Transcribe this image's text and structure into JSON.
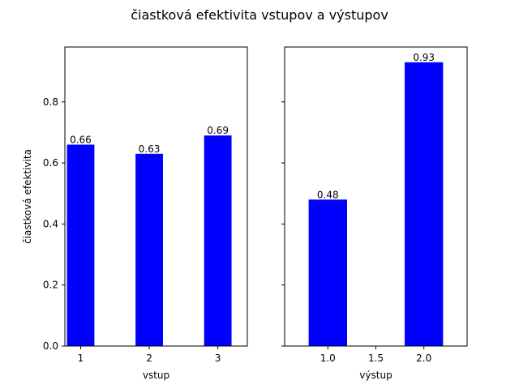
{
  "figure": {
    "title": "čiastková efektivita vstupov a výstupov"
  },
  "chart_data": [
    {
      "type": "bar",
      "x": [
        1,
        2,
        3
      ],
      "values": [
        0.66,
        0.63,
        0.69
      ],
      "bar_labels": [
        "0.66",
        "0.63",
        "0.69"
      ],
      "xticks": [
        "1",
        "2",
        "3"
      ],
      "yticks": [
        "0.0",
        "0.2",
        "0.4",
        "0.6",
        "0.8"
      ],
      "xlabel": "vstup",
      "ylabel": "čiastková efektivita",
      "xlim": [
        0.77,
        3.43
      ],
      "ylim": [
        0,
        0.98
      ],
      "bar_width": 0.4,
      "color": "#0000ff",
      "grid": false
    },
    {
      "type": "bar",
      "x": [
        1.0,
        2.0
      ],
      "values": [
        0.48,
        0.93
      ],
      "bar_labels": [
        "0.48",
        "0.93"
      ],
      "xticks": [
        "1.0",
        "1.5",
        "2.0"
      ],
      "xtick_values": [
        1.0,
        1.5,
        2.0
      ],
      "xlabel": "výstup",
      "ylabel": "",
      "xlim": [
        0.55,
        2.45
      ],
      "ylim": [
        0,
        0.98
      ],
      "bar_width": 0.4,
      "color": "#0000ff",
      "grid": false,
      "sharey": true
    }
  ]
}
